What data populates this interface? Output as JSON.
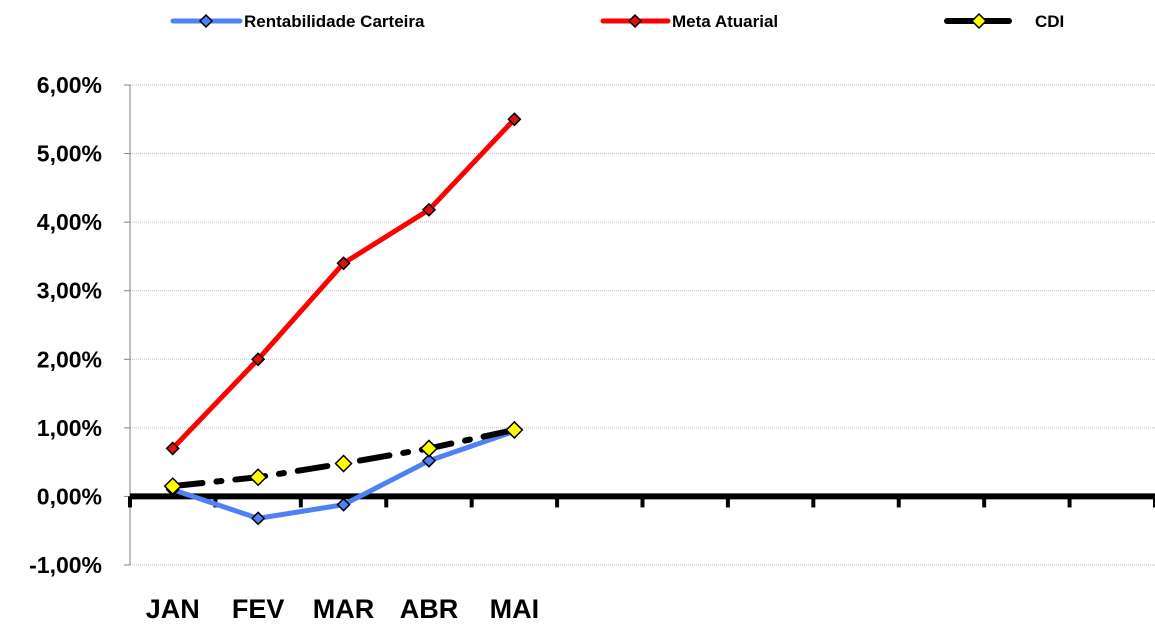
{
  "chart_data": {
    "type": "line",
    "categories": [
      "JAN",
      "FEV",
      "MAR",
      "ABR",
      "MAI"
    ],
    "category_slots": 12,
    "ylim": [
      -0.01,
      0.06
    ],
    "y_ticks": [
      -0.01,
      0,
      0.01,
      0.02,
      0.03,
      0.04,
      0.05,
      0.06
    ],
    "y_tick_labels": [
      "-1,00%",
      "0,00%",
      "1,00%",
      "2,00%",
      "3,00%",
      "4,00%",
      "5,00%",
      "6,00%"
    ],
    "grid": true,
    "legend_position": "top",
    "series": [
      {
        "name": "Rentabilidade Carteira",
        "values": [
          0.001,
          -0.0032,
          -0.0012,
          0.0052,
          0.0095
        ],
        "color": "#4F81F5",
        "marker_color": "#4F81F5",
        "line_style": "solid"
      },
      {
        "name": "Meta Atuarial",
        "values": [
          0.007,
          0.02,
          0.034,
          0.0418,
          0.055
        ],
        "color": "#FF0000",
        "marker_color": "#E01010",
        "line_style": "solid"
      },
      {
        "name": "CDI",
        "values": [
          0.0015,
          0.0028,
          0.0048,
          0.007,
          0.0097
        ],
        "color": "#000000",
        "marker_color": "#FFFF00",
        "line_style": "dash-dot"
      }
    ]
  }
}
